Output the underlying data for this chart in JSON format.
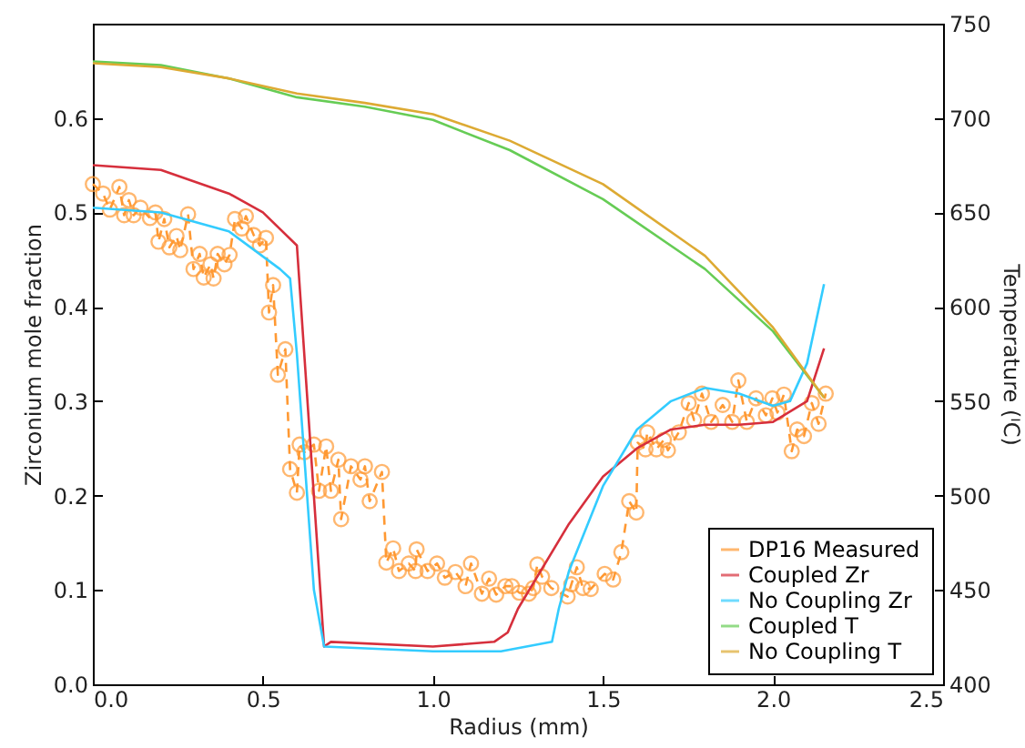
{
  "chart_data": {
    "type": "line",
    "xlabel": "Radius (mm)",
    "ylabel": "Zirconium mole fraction",
    "y2label": "Temperature (ᴵC)",
    "xlim": [
      0,
      2.5
    ],
    "xticks": [
      {
        "value": 0,
        "label": "0.0"
      },
      0.5,
      {
        "value": 1,
        "label": "1.0"
      },
      1.5,
      {
        "value": 2,
        "label": "2.0"
      },
      2.5
    ],
    "ylim": [
      0,
      0.7
    ],
    "yticks": [
      {
        "value": 0,
        "label": "0.0"
      },
      0.1,
      0.2,
      0.3,
      0.4,
      0.5,
      0.6
    ],
    "y2lim": [
      400,
      750
    ],
    "y2ticks": [
      400,
      450,
      500,
      550,
      600,
      650,
      700,
      750
    ],
    "legend": "bottom right",
    "grid": false,
    "series": [
      {
        "name": "DP16 Measured",
        "color": "#ff9933",
        "marker": "circle",
        "line_style": "dashed",
        "x": [
          0,
          0.03,
          0.05,
          0.078,
          0.092,
          0.106,
          0.12,
          0.14,
          0.168,
          0.184,
          0.193,
          0.21,
          0.225,
          0.246,
          0.257,
          0.28,
          0.296,
          0.314,
          0.326,
          0.346,
          0.355,
          0.367,
          0.387,
          0.402,
          0.418,
          0.438,
          0.45,
          0.473,
          0.491,
          0.509,
          0.518,
          0.53,
          0.544,
          0.566,
          0.58,
          0.6,
          0.608,
          0.622,
          0.65,
          0.665,
          0.686,
          0.7,
          0.722,
          0.73,
          0.759,
          0.787,
          0.8,
          0.814,
          0.85,
          0.863,
          0.883,
          0.9,
          0.929,
          0.949,
          0.952,
          0.984,
          1.012,
          1.035,
          1.066,
          1.096,
          1.112,
          1.144,
          1.165,
          1.186,
          1.213,
          1.232,
          1.254,
          1.282,
          1.295,
          1.307,
          1.321,
          1.348,
          1.396,
          1.407,
          1.423,
          1.441,
          1.464,
          1.505,
          1.53,
          1.554,
          1.577,
          1.598,
          1.602,
          1.625,
          1.63,
          1.657,
          1.679,
          1.691,
          1.723,
          1.752,
          1.768,
          1.791,
          1.818,
          1.852,
          1.88,
          1.898,
          1.923,
          1.95,
          1.979,
          1.998,
          2.013,
          2.032,
          2.055,
          2.071,
          2.091,
          2.114,
          2.134,
          2.155
        ],
        "values": [
          0.53,
          0.52,
          0.503,
          0.527,
          0.497,
          0.513,
          0.497,
          0.505,
          0.494,
          0.5,
          0.469,
          0.493,
          0.463,
          0.475,
          0.46,
          0.498,
          0.44,
          0.456,
          0.431,
          0.445,
          0.43,
          0.456,
          0.445,
          0.455,
          0.493,
          0.483,
          0.496,
          0.476,
          0.465,
          0.473,
          0.394,
          0.423,
          0.328,
          0.355,
          0.228,
          0.203,
          0.254,
          0.246,
          0.254,
          0.205,
          0.252,
          0.205,
          0.238,
          0.175,
          0.231,
          0.217,
          0.231,
          0.194,
          0.225,
          0.129,
          0.144,
          0.12,
          0.128,
          0.12,
          0.143,
          0.12,
          0.128,
          0.113,
          0.119,
          0.104,
          0.128,
          0.096,
          0.112,
          0.095,
          0.104,
          0.104,
          0.097,
          0.096,
          0.102,
          0.127,
          0.114,
          0.102,
          0.093,
          0.106,
          0.124,
          0.102,
          0.101,
          0.117,
          0.111,
          0.14,
          0.194,
          0.182,
          0.256,
          0.249,
          0.267,
          0.249,
          0.259,
          0.248,
          0.267,
          0.298,
          0.28,
          0.308,
          0.278,
          0.296,
          0.278,
          0.322,
          0.278,
          0.303,
          0.285,
          0.303,
          0.288,
          0.307,
          0.247,
          0.27,
          0.263,
          0.298,
          0.276,
          0.308
        ]
      },
      {
        "name": "Coupled Zr",
        "color": "#d62f3c",
        "x": [
          0,
          0.2,
          0.4,
          0.5,
          0.6,
          0.68,
          0.7,
          1.0,
          1.18,
          1.22,
          1.25,
          1.4,
          1.5,
          1.6,
          1.7,
          1.8,
          1.9,
          2.0,
          2.1,
          2.15
        ],
        "values": [
          0.55,
          0.545,
          0.52,
          0.5,
          0.465,
          0.04,
          0.045,
          0.04,
          0.045,
          0.055,
          0.08,
          0.17,
          0.22,
          0.25,
          0.27,
          0.275,
          0.275,
          0.278,
          0.3,
          0.356
        ]
      },
      {
        "name": "No Coupling Zr",
        "color": "#33ccff",
        "x": [
          0,
          0.2,
          0.4,
          0.55,
          0.58,
          0.6,
          0.65,
          0.68,
          1.0,
          1.2,
          1.35,
          1.37,
          1.4,
          1.5,
          1.6,
          1.7,
          1.8,
          1.9,
          2.0,
          2.05,
          2.1,
          2.15
        ],
        "values": [
          0.505,
          0.5,
          0.48,
          0.44,
          0.43,
          0.35,
          0.1,
          0.04,
          0.035,
          0.035,
          0.045,
          0.08,
          0.12,
          0.21,
          0.27,
          0.3,
          0.314,
          0.308,
          0.295,
          0.3,
          0.34,
          0.424
        ]
      },
      {
        "name": "Coupled T",
        "color": "#66cc55",
        "axis": "y2",
        "x": [
          0,
          0.2,
          0.4,
          0.6,
          0.8,
          1.0,
          1.226,
          1.5,
          1.8,
          2.0,
          2.15
        ],
        "values": [
          730,
          728,
          721,
          711,
          706,
          699,
          683,
          657,
          620,
          587,
          552
        ]
      },
      {
        "name": "No Coupling T",
        "color": "#ddaa33",
        "axis": "y2",
        "x": [
          0,
          0.2,
          0.4,
          0.6,
          0.8,
          1.0,
          1.226,
          1.5,
          1.8,
          2.0,
          2.15
        ],
        "values": [
          729,
          727,
          721,
          713,
          708,
          702,
          688,
          665,
          627,
          589,
          552
        ]
      }
    ]
  }
}
